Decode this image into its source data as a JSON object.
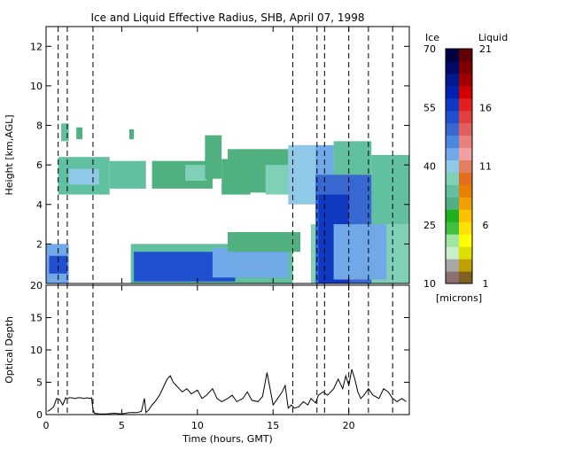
{
  "chart_data": {
    "title": "Ice and Liquid Effective Radius, SHB, April 07, 1998",
    "x_axis": {
      "label": "Time (hours, GMT)",
      "range": [
        0,
        24
      ],
      "ticks": [
        0,
        5,
        10,
        15,
        20
      ]
    },
    "panels": [
      {
        "type": "heatmap",
        "ylabel": "Height [km,AGL]",
        "ylim": [
          0,
          13
        ],
        "yticks": [
          2,
          4,
          6,
          8,
          10,
          12
        ],
        "colorbar": {
          "ice_label": "Ice",
          "liquid_label": "Liquid",
          "units": "[microns]",
          "ice_ticks": [
            10,
            25,
            40,
            55,
            70
          ],
          "liquid_ticks": [
            1,
            6,
            11,
            16,
            21
          ],
          "ice_colors": [
            "#8a7070",
            "#a8a8a8",
            "#c8f0c8",
            "#a0e6a0",
            "#40c040",
            "#20b020",
            "#50b080",
            "#60c0a0",
            "#80d0b8",
            "#90c8e8",
            "#70a8e8",
            "#4888e0",
            "#3868d0",
            "#2050d0",
            "#1038c0",
            "#0020b0",
            "#001890",
            "#000868",
            "#000040"
          ],
          "liquid_colors": [
            "#806020",
            "#c0a000",
            "#e0e000",
            "#ffff00",
            "#ffe000",
            "#ffc000",
            "#f0a000",
            "#e88000",
            "#e07020",
            "#e08060",
            "#f0a0a0",
            "#e88080",
            "#e06060",
            "#e04040",
            "#e02020",
            "#d00000",
            "#a00000",
            "#800000",
            "#600000"
          ]
        }
      },
      {
        "type": "line",
        "ylabel": "Optical Depth",
        "ylim": [
          0,
          20
        ],
        "yticks": [
          0,
          5,
          10,
          15,
          20
        ],
        "series": [
          {
            "x": [
              0.1,
              0.3,
              0.5,
              0.7,
              0.9,
              1.1,
              1.3,
              1.4,
              1.5,
              1.7,
              1.9,
              2.1,
              2.3,
              2.5,
              2.7,
              2.9,
              3.0,
              3.1,
              3.2,
              3.5,
              4.0,
              4.5,
              5.0,
              5.5,
              6.0,
              6.3,
              6.5,
              6.6,
              6.8,
              7.0,
              7.2,
              7.5,
              7.8,
              8.0,
              8.2,
              8.4,
              8.6,
              8.8,
              9.0,
              9.3,
              9.6,
              10.0,
              10.3,
              10.6,
              11.0,
              11.3,
              11.6,
              12.0,
              12.3,
              12.6,
              13.0,
              13.3,
              13.6,
              14.0,
              14.3,
              14.6,
              15.0,
              15.3,
              15.6,
              15.8,
              16.0,
              16.2,
              16.4,
              16.7,
              17.0,
              17.3,
              17.5,
              17.8,
              18.0,
              18.3,
              18.6,
              19.0,
              19.3,
              19.6,
              19.8,
              20.0,
              20.2,
              20.4,
              20.6,
              20.8,
              21.0,
              21.3,
              21.6,
              22.0,
              22.3,
              22.6,
              22.9,
              23.2,
              23.5,
              23.8
            ],
            "y": [
              0.5,
              0.8,
              1.2,
              2.5,
              2.3,
              1.5,
              2.6,
              2.4,
              2.6,
              2.6,
              2.5,
              2.6,
              2.6,
              2.5,
              2.6,
              2.5,
              2.6,
              0.8,
              0.2,
              0.1,
              0.1,
              0.2,
              0.1,
              0.3,
              0.3,
              0.5,
              2.5,
              0.3,
              0.8,
              1.5,
              2.0,
              3.0,
              4.5,
              5.5,
              6.0,
              5.0,
              4.5,
              4.0,
              3.5,
              4.0,
              3.2,
              3.8,
              2.5,
              3.0,
              4.0,
              2.5,
              2.0,
              2.5,
              3.0,
              2.0,
              2.5,
              3.5,
              2.2,
              2.0,
              2.8,
              6.5,
              1.5,
              2.5,
              3.5,
              4.5,
              1.0,
              1.5,
              1.0,
              1.2,
              2.0,
              1.5,
              2.5,
              1.8,
              3.0,
              3.5,
              3.0,
              4.0,
              5.5,
              4.0,
              6.0,
              4.5,
              7.0,
              5.5,
              3.5,
              2.5,
              3.0,
              4.0,
              3.0,
              2.5,
              4.0,
              3.5,
              2.5,
              2.0,
              2.5,
              2.0
            ]
          }
        ]
      }
    ],
    "dashed_lines_x": [
      0.8,
      1.4,
      3.1,
      16.3,
      17.9,
      18.4,
      20.0,
      21.3,
      22.9
    ]
  }
}
